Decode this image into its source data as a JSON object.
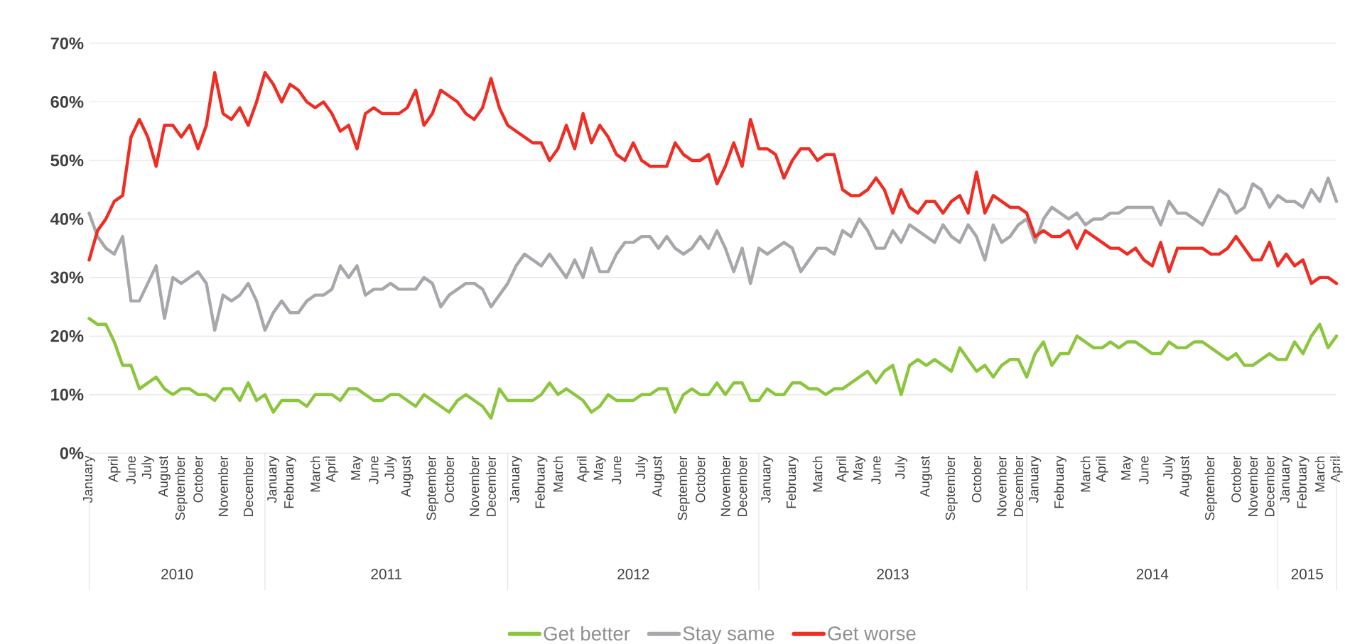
{
  "chart_data": {
    "type": "line",
    "categories": [
      "January",
      null,
      null,
      "April",
      null,
      "June",
      null,
      "July",
      null,
      "August",
      null,
      "September",
      null,
      "October",
      null,
      null,
      "November",
      null,
      null,
      "December",
      null,
      null,
      "January",
      null,
      "February",
      null,
      null,
      "March",
      null,
      "April",
      null,
      null,
      "May",
      null,
      "June",
      null,
      "July",
      null,
      "August",
      null,
      null,
      "September",
      null,
      "October",
      null,
      null,
      "November",
      null,
      "December",
      null,
      null,
      "January",
      null,
      null,
      "February",
      null,
      "March",
      null,
      null,
      "April",
      null,
      "May",
      null,
      "June",
      null,
      null,
      "July",
      null,
      "August",
      null,
      null,
      "September",
      null,
      "October",
      null,
      null,
      "November",
      null,
      "December",
      null,
      null,
      "January",
      null,
      null,
      "February",
      null,
      null,
      "March",
      null,
      null,
      "April",
      null,
      "May",
      null,
      "June",
      null,
      null,
      "July",
      null,
      null,
      "August",
      null,
      null,
      "September",
      null,
      null,
      "October",
      null,
      null,
      "November",
      null,
      "December",
      null,
      "January",
      null,
      null,
      "February",
      null,
      null,
      "March",
      null,
      "April",
      null,
      null,
      "May",
      null,
      "June",
      null,
      null,
      "July",
      null,
      "August",
      null,
      null,
      "September",
      null,
      null,
      "October",
      null,
      "November",
      null,
      "December",
      null,
      "January",
      null,
      "February",
      null,
      "March",
      null,
      "April"
    ],
    "series": [
      {
        "name": "Get better",
        "color": "#8cc63e",
        "values": [
          23,
          22,
          22,
          19,
          15,
          15,
          11,
          12,
          13,
          11,
          10,
          11,
          11,
          10,
          10,
          9,
          11,
          11,
          9,
          12,
          9,
          10,
          7,
          9,
          9,
          9,
          8,
          10,
          10,
          10,
          9,
          11,
          11,
          10,
          9,
          9,
          10,
          10,
          9,
          8,
          10,
          9,
          8,
          7,
          9,
          10,
          9,
          8,
          6,
          11,
          9,
          9,
          9,
          9,
          10,
          12,
          10,
          11,
          10,
          9,
          7,
          8,
          10,
          9,
          9,
          9,
          10,
          10,
          11,
          11,
          7,
          10,
          11,
          10,
          10,
          12,
          10,
          12,
          12,
          9,
          9,
          11,
          10,
          10,
          12,
          12,
          11,
          11,
          10,
          11,
          11,
          12,
          13,
          14,
          12,
          14,
          15,
          10,
          15,
          16,
          15,
          16,
          15,
          14,
          18,
          16,
          14,
          15,
          13,
          15,
          16,
          16,
          13,
          17,
          19,
          15,
          17,
          17,
          20,
          19,
          18,
          18,
          19,
          18,
          19,
          19,
          18,
          17,
          17,
          19,
          18,
          18,
          19,
          19,
          18,
          17,
          16,
          17,
          15,
          15,
          16,
          17,
          16,
          16,
          19,
          17,
          20,
          22,
          18,
          20
        ]
      },
      {
        "name": "Stay same",
        "color": "#a7a8ac",
        "values": [
          41,
          37,
          35,
          34,
          37,
          26,
          26,
          29,
          32,
          23,
          30,
          29,
          30,
          31,
          29,
          21,
          27,
          26,
          27,
          29,
          26,
          21,
          24,
          26,
          24,
          24,
          26,
          27,
          27,
          28,
          32,
          30,
          32,
          27,
          28,
          28,
          29,
          28,
          28,
          28,
          30,
          29,
          25,
          27,
          28,
          29,
          29,
          28,
          25,
          27,
          29,
          32,
          34,
          33,
          32,
          34,
          32,
          30,
          33,
          30,
          35,
          31,
          31,
          34,
          36,
          36,
          37,
          37,
          35,
          37,
          35,
          34,
          35,
          37,
          35,
          38,
          35,
          31,
          35,
          29,
          35,
          34,
          35,
          36,
          35,
          31,
          33,
          35,
          35,
          34,
          38,
          37,
          40,
          38,
          35,
          35,
          38,
          36,
          39,
          38,
          37,
          36,
          39,
          37,
          36,
          39,
          37,
          33,
          39,
          36,
          37,
          39,
          40,
          36,
          40,
          42,
          41,
          40,
          41,
          39,
          40,
          40,
          41,
          41,
          42,
          42,
          42,
          42,
          39,
          43,
          41,
          41,
          40,
          39,
          42,
          45,
          44,
          41,
          42,
          46,
          45,
          42,
          44,
          43,
          43,
          42,
          45,
          43,
          47,
          43
        ]
      },
      {
        "name": "Get worse",
        "color": "#ee2e24",
        "values": [
          33,
          38,
          40,
          43,
          44,
          54,
          57,
          54,
          49,
          56,
          56,
          54,
          56,
          52,
          56,
          65,
          58,
          57,
          59,
          56,
          60,
          65,
          63,
          60,
          63,
          62,
          60,
          59,
          60,
          58,
          55,
          56,
          52,
          58,
          59,
          58,
          58,
          58,
          59,
          62,
          56,
          58,
          62,
          61,
          60,
          58,
          57,
          59,
          64,
          59,
          56,
          55,
          54,
          53,
          53,
          50,
          52,
          56,
          52,
          58,
          53,
          56,
          54,
          51,
          50,
          53,
          50,
          49,
          49,
          49,
          53,
          51,
          50,
          50,
          51,
          46,
          49,
          53,
          49,
          57,
          52,
          52,
          51,
          47,
          50,
          52,
          52,
          50,
          51,
          51,
          45,
          44,
          44,
          45,
          47,
          45,
          41,
          45,
          42,
          41,
          43,
          43,
          41,
          43,
          44,
          41,
          48,
          41,
          44,
          43,
          42,
          42,
          41,
          37,
          38,
          37,
          37,
          38,
          35,
          38,
          37,
          36,
          35,
          35,
          34,
          35,
          33,
          32,
          36,
          31,
          35,
          35,
          35,
          35,
          34,
          34,
          35,
          37,
          35,
          33,
          33,
          36,
          32,
          34,
          32,
          33,
          29,
          30,
          30,
          29
        ]
      }
    ],
    "ylim": [
      0,
      70
    ],
    "yticks": [
      {
        "value": 0,
        "label": "0%"
      },
      {
        "value": 10,
        "label": "10%"
      },
      {
        "value": 20,
        "label": "20%"
      },
      {
        "value": 30,
        "label": "30%"
      },
      {
        "value": 40,
        "label": "40%"
      },
      {
        "value": 50,
        "label": "50%"
      },
      {
        "value": 60,
        "label": "60%"
      },
      {
        "value": 70,
        "label": "70%"
      }
    ],
    "grid": "y",
    "legend": "bottom",
    "annotations": [
      "2010",
      "2011",
      "2012",
      "2013",
      "2014",
      "2015"
    ]
  }
}
